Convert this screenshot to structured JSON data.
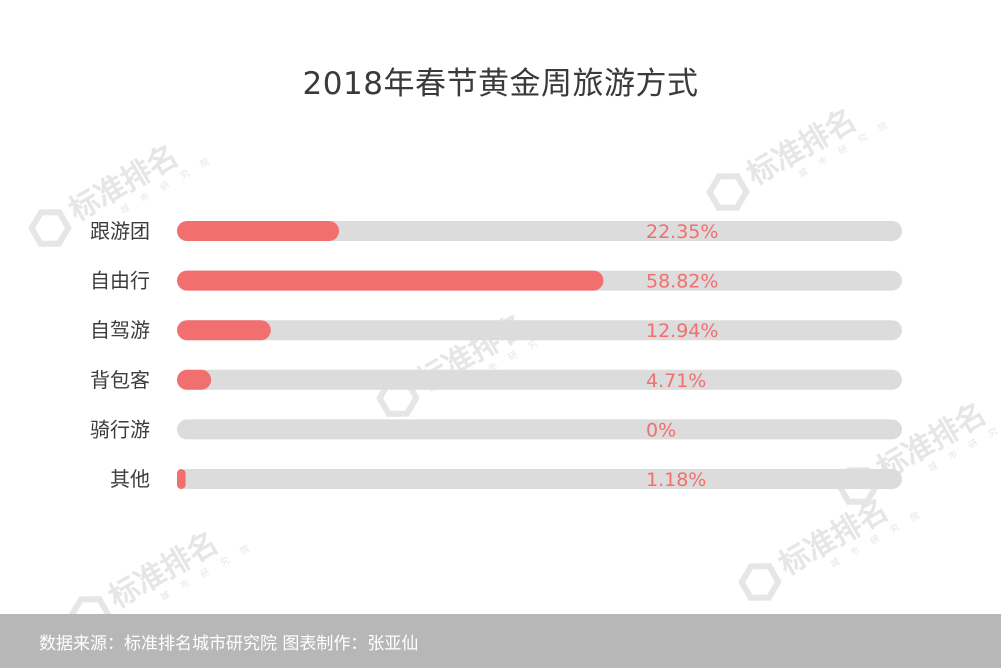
{
  "chart_data": {
    "type": "bar",
    "orientation": "horizontal",
    "title": "2018年春节黄金周旅游方式",
    "categories": [
      "跟游团",
      "自由行",
      "自驾游",
      "背包客",
      "骑行游",
      "其他"
    ],
    "values": [
      22.35,
      58.82,
      12.94,
      4.71,
      0,
      1.18
    ],
    "value_labels": [
      "22.35%",
      "58.82%",
      "12.94%",
      "4.71%",
      "0%",
      "1.18%"
    ],
    "xlim": [
      0,
      100
    ],
    "grid": false,
    "legend": "none",
    "colors": {
      "bar": "#f26f70",
      "track": "#dcdcdc",
      "label": "#3d3d3d",
      "value_label": "#f26f70"
    }
  },
  "watermark": {
    "text": "标准排名",
    "subtext": "城市研究院",
    "icon": "hexagon-logo-icon",
    "color": "#e6e6e6"
  },
  "footer": {
    "text": "数据来源：标准排名城市研究院  图表制作：张亚仙",
    "background": "#b7b7b7"
  }
}
